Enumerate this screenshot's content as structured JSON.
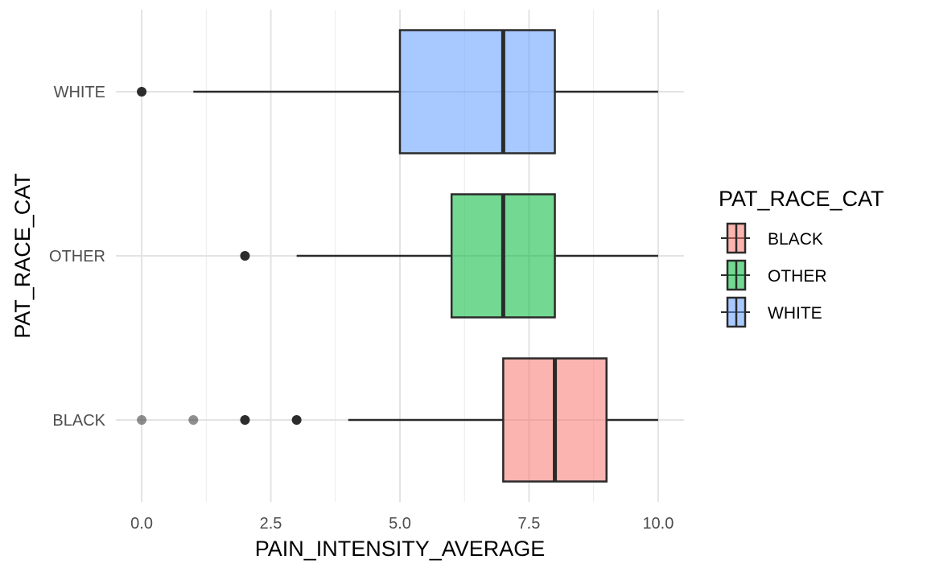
{
  "chart_data": {
    "type": "boxplot",
    "orientation": "horizontal",
    "xlabel": "PAIN_INTENSITY_AVERAGE",
    "ylabel": "PAT_RACE_CAT",
    "xlim": [
      -0.5,
      10.5
    ],
    "x_ticks": [
      {
        "value": 0,
        "label": "0.0"
      },
      {
        "value": 2.5,
        "label": "2.5"
      },
      {
        "value": 5,
        "label": "5.0"
      },
      {
        "value": 7.5,
        "label": "7.5"
      },
      {
        "value": 10,
        "label": "10.0"
      }
    ],
    "x_minor_ticks": [
      1.25,
      3.75,
      6.25,
      8.75
    ],
    "categories": [
      "BLACK",
      "OTHER",
      "WHITE"
    ],
    "grid": true,
    "legend": {
      "title": "PAT_RACE_CAT",
      "placement": "right",
      "entries": [
        "BLACK",
        "OTHER",
        "WHITE"
      ]
    },
    "colors": {
      "BLACK": "#F8766D",
      "OTHER": "#00BA38",
      "WHITE": "#619CFF"
    },
    "series": [
      {
        "name": "BLACK",
        "whisker_low": 4,
        "q1": 7,
        "median": 8,
        "q3": 9,
        "whisker_high": 10,
        "outliers": [
          {
            "value": 0,
            "strength": 0.5
          },
          {
            "value": 1,
            "strength": 0.5
          },
          {
            "value": 2,
            "strength": 1
          },
          {
            "value": 3,
            "strength": 1
          }
        ]
      },
      {
        "name": "OTHER",
        "whisker_low": 3,
        "q1": 6,
        "median": 7,
        "q3": 8,
        "whisker_high": 10,
        "outliers": [
          {
            "value": 2,
            "strength": 1
          }
        ]
      },
      {
        "name": "WHITE",
        "whisker_low": 1,
        "q1": 5,
        "median": 7,
        "q3": 8,
        "whisker_high": 10,
        "outliers": [
          {
            "value": 0,
            "strength": 1
          }
        ]
      }
    ]
  }
}
